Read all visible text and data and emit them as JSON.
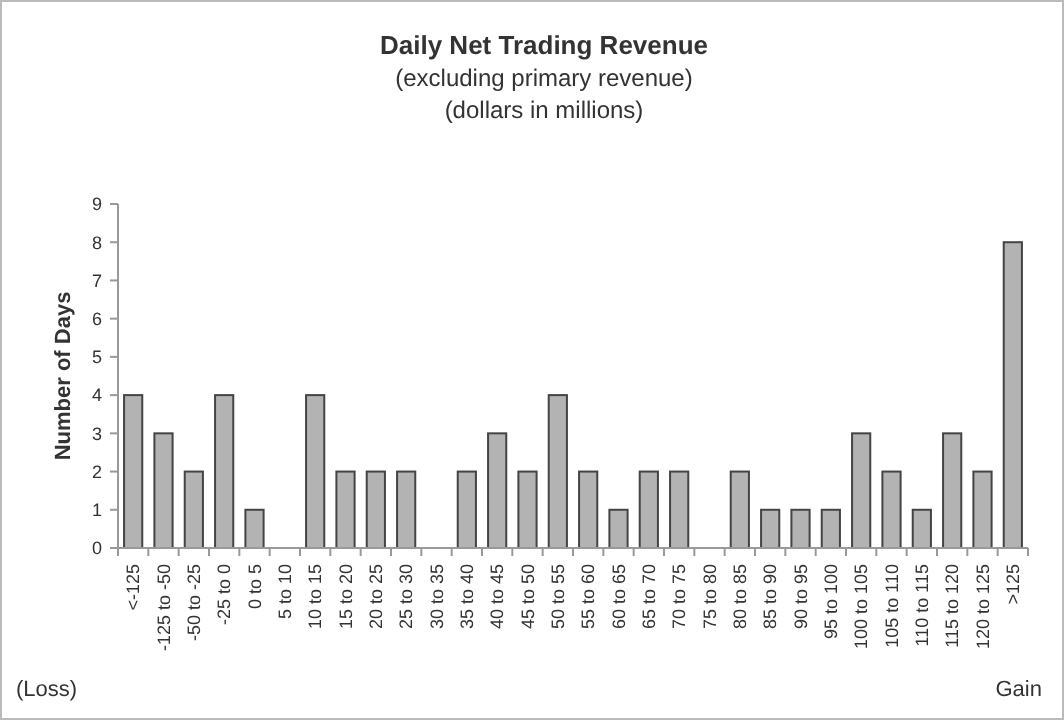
{
  "chart_data": {
    "type": "bar",
    "title": "Daily Net Trading Revenue",
    "subtitle": "(excluding primary revenue)\n(dollars in millions)",
    "ylabel": "Number of Days",
    "categories": [
      "<-125",
      "-125 to -50",
      "-50 to -25",
      "-25 to 0",
      "0 to 5",
      "5 to 10",
      "10 to 15",
      "15 to 20",
      "20 to 25",
      "25 to 30",
      "30 to 35",
      "35 to 40",
      "40 to 45",
      "45 to 50",
      "50 to 55",
      "55 to 60",
      "60 to 65",
      "65 to 70",
      "70 to 75",
      "75 to 80",
      "80 to 85",
      "85 to 90",
      "90 to 95",
      "95 to 100",
      "100 to 105",
      "105 to 110",
      "110 to 115",
      "115 to 120",
      "120 to 125",
      ">125"
    ],
    "values": [
      4,
      3,
      2,
      4,
      1,
      0,
      4,
      2,
      2,
      2,
      0,
      2,
      3,
      2,
      4,
      2,
      1,
      2,
      2,
      0,
      2,
      1,
      1,
      1,
      3,
      2,
      1,
      3,
      2,
      8
    ],
    "color": "#b3b3b3",
    "ylim": [
      0,
      9
    ],
    "yticks": [
      0,
      1,
      2,
      3,
      4,
      5,
      6,
      7,
      8,
      9
    ],
    "grid": false,
    "annotations": [
      "(Loss)",
      "Gain"
    ]
  }
}
